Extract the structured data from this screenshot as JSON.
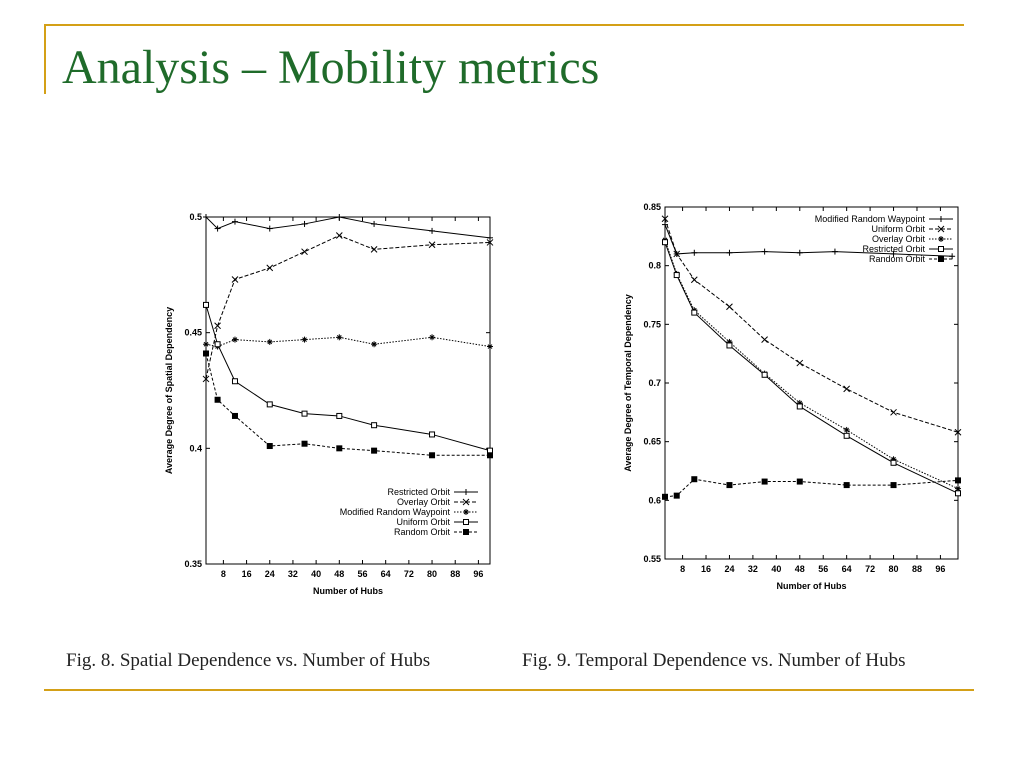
{
  "slide": {
    "title": "Analysis – Mobility metrics",
    "accent_color": "#d4a017",
    "title_color": "#1f6b2a"
  },
  "captions": [
    "Fig. 8.   Spatial Dependence vs. Number of Hubs",
    "Fig. 9.   Temporal Dependence vs. Number of Hubs"
  ],
  "chart_data": [
    {
      "type": "line",
      "xlabel": "Number of Hubs",
      "ylabel": "Average Degree of Spatial Dependency",
      "xlim": [
        2,
        100
      ],
      "ylim": [
        0.35,
        0.5
      ],
      "xticks": [
        8,
        16,
        24,
        32,
        40,
        48,
        56,
        64,
        72,
        80,
        88,
        96
      ],
      "yticks": [
        0.35,
        0.4,
        0.45,
        0.5
      ],
      "ytick_labels": [
        "0.35",
        "0.4",
        "0.45",
        "0.5"
      ],
      "legend_position": "bottom-right",
      "grid": false,
      "series": [
        {
          "name": "Restricted Orbit",
          "marker": "plus",
          "x": [
            2,
            6,
            12,
            24,
            36,
            48,
            60,
            80,
            100
          ],
          "y": [
            0.5,
            0.495,
            0.498,
            0.495,
            0.497,
            0.5,
            0.497,
            0.494,
            0.491
          ]
        },
        {
          "name": "Overlay Orbit",
          "marker": "x",
          "x": [
            2,
            6,
            12,
            24,
            36,
            48,
            60,
            80,
            100
          ],
          "y": [
            0.43,
            0.453,
            0.473,
            0.478,
            0.485,
            0.492,
            0.486,
            0.488,
            0.489
          ]
        },
        {
          "name": "Modified Random Waypoint",
          "marker": "star",
          "x": [
            2,
            6,
            12,
            24,
            36,
            48,
            60,
            80,
            100
          ],
          "y": [
            0.445,
            0.444,
            0.447,
            0.446,
            0.447,
            0.448,
            0.445,
            0.448,
            0.444
          ]
        },
        {
          "name": "Uniform Orbit",
          "marker": "square-open",
          "x": [
            2,
            6,
            12,
            24,
            36,
            48,
            60,
            80,
            100
          ],
          "y": [
            0.462,
            0.445,
            0.429,
            0.419,
            0.415,
            0.414,
            0.41,
            0.406,
            0.399
          ]
        },
        {
          "name": "Random Orbit",
          "marker": "square-filled",
          "x": [
            2,
            6,
            12,
            24,
            36,
            48,
            60,
            80,
            100
          ],
          "y": [
            0.441,
            0.421,
            0.414,
            0.401,
            0.402,
            0.4,
            0.399,
            0.397,
            0.397
          ]
        }
      ]
    },
    {
      "type": "line",
      "xlabel": "Number of Hubs",
      "ylabel": "Average Degree of Temporal Dependency",
      "xlim": [
        2,
        102
      ],
      "ylim": [
        0.55,
        0.85
      ],
      "xticks": [
        8,
        16,
        24,
        32,
        40,
        48,
        56,
        64,
        72,
        80,
        88,
        96
      ],
      "yticks": [
        0.55,
        0.6,
        0.65,
        0.7,
        0.75,
        0.8,
        0.85
      ],
      "ytick_labels": [
        "0.55",
        "0.6",
        "0.65",
        "0.7",
        "0.75",
        "0.8",
        "0.85"
      ],
      "legend_position": "top-right",
      "grid": false,
      "series": [
        {
          "name": "Modified Random Waypoint",
          "marker": "plus",
          "x": [
            2,
            6,
            12,
            24,
            36,
            48,
            60,
            80,
            100
          ],
          "y": [
            0.835,
            0.81,
            0.811,
            0.811,
            0.812,
            0.811,
            0.812,
            0.81,
            0.808
          ]
        },
        {
          "name": "Uniform Orbit",
          "marker": "x",
          "x": [
            2,
            6,
            12,
            24,
            36,
            48,
            64,
            80,
            102
          ],
          "y": [
            0.84,
            0.81,
            0.788,
            0.765,
            0.737,
            0.717,
            0.695,
            0.675,
            0.658
          ]
        },
        {
          "name": "Overlay Orbit",
          "marker": "star",
          "x": [
            2,
            6,
            12,
            24,
            36,
            48,
            64,
            80,
            102
          ],
          "y": [
            0.822,
            0.793,
            0.762,
            0.735,
            0.708,
            0.683,
            0.66,
            0.635,
            0.61
          ]
        },
        {
          "name": "Restricted Orbit",
          "marker": "square-open",
          "x": [
            2,
            6,
            12,
            24,
            36,
            48,
            64,
            80,
            102
          ],
          "y": [
            0.82,
            0.792,
            0.76,
            0.732,
            0.707,
            0.68,
            0.655,
            0.632,
            0.606
          ]
        },
        {
          "name": "Random Orbit",
          "marker": "square-filled",
          "x": [
            2,
            6,
            12,
            24,
            36,
            48,
            64,
            80,
            102
          ],
          "y": [
            0.603,
            0.604,
            0.618,
            0.613,
            0.616,
            0.616,
            0.613,
            0.613,
            0.617
          ]
        }
      ]
    }
  ]
}
